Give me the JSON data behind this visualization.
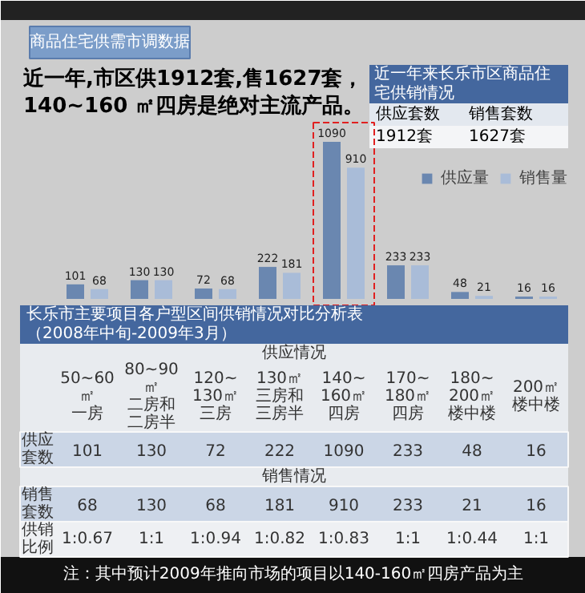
{
  "chart_data": {
    "type": "bar",
    "title": "近一年,市区供1912套,售1627套，\n140~160 ㎡四房是绝对主流产品。",
    "categories": [
      "50~60㎡一房",
      "80~90㎡二房和二房半",
      "120~130㎡三房",
      "130㎡三房和三房半",
      "140~160㎡四房",
      "170~180㎡四房",
      "180~200㎡楼中楼",
      "200㎡楼中楼"
    ],
    "series": [
      {
        "name": "供应量",
        "color": "#6a87b0",
        "values": [
          101,
          130,
          72,
          222,
          1090,
          233,
          48,
          16
        ],
        "value_labels": [
          "101",
          "130",
          "72",
          "222",
          "1090",
          "233",
          "48",
          "16"
        ]
      },
      {
        "name": "销售量",
        "color": "#a9bcd8",
        "values": [
          68,
          130,
          68,
          181,
          910,
          233,
          21,
          16
        ],
        "value_labels": [
          "68",
          "130",
          "68",
          "181",
          "910",
          "233",
          "21",
          "16"
        ]
      }
    ],
    "data_labels": true,
    "legend": "top right",
    "tick_labels": false,
    "annotations": [
      "商品住宅供需市调数据",
      "近一年来长乐市区商品住宅供销情况",
      "供应套数",
      "销售套数",
      "1912套",
      "1627套",
      "长乐市主要项目各户型区间供销情况对比分析表（2008年中旬-2009年3月）",
      "供应情况",
      "销售情况",
      "供应套数",
      "销售套数",
      "供销比例",
      "1:0.67",
      "1:1",
      "1:0.94",
      "1:0.82",
      "1:0.83",
      "1:1",
      "1:0.44",
      "1:1",
      "注：其中预计2009年推向市场的项目以140-160㎡四房产品为主"
    ]
  }
}
